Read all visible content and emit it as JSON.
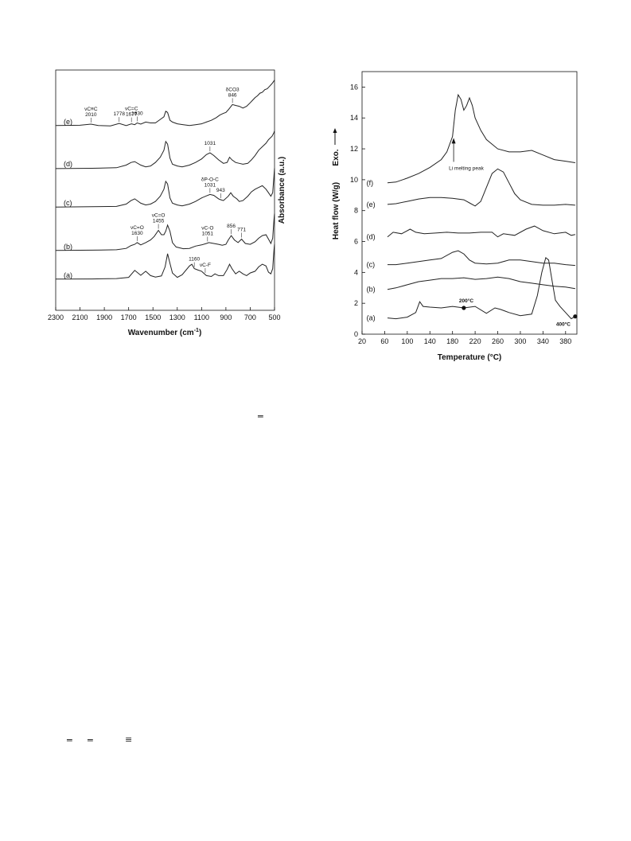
{
  "chart_data": [
    {
      "type": "line",
      "xlabel": "Wavenumber (cm-1)",
      "ylabel": "Absorbance (a.u.)",
      "x_ticks": [
        "2300",
        "2100",
        "1900",
        "1700",
        "1500",
        "1300",
        "1100",
        "900",
        "700",
        "500"
      ],
      "xlim": [
        2300,
        500
      ],
      "x_reversed": true,
      "series": [
        {
          "name": "(a)",
          "offset": 0,
          "x": [
            2300,
            2000,
            1800,
            1700,
            1650,
            1600,
            1560,
            1520,
            1480,
            1430,
            1400,
            1380,
            1360,
            1340,
            1300,
            1260,
            1200,
            1180,
            1160,
            1130,
            1100,
            1060,
            1020,
            990,
            960,
            920,
            890,
            870,
            850,
            820,
            790,
            760,
            730,
            700,
            660,
            630,
            600,
            570,
            550,
            530,
            515,
            505,
            500
          ],
          "y": [
            0.1,
            0.11,
            0.13,
            0.2,
            0.6,
            0.32,
            0.55,
            0.3,
            0.22,
            0.28,
            0.8,
            1.55,
            1.0,
            0.45,
            0.2,
            0.35,
            0.85,
            0.95,
            0.7,
            0.62,
            0.55,
            0.3,
            0.25,
            0.4,
            0.3,
            0.3,
            0.65,
            0.95,
            0.7,
            0.4,
            0.55,
            0.4,
            0.3,
            0.45,
            0.55,
            0.8,
            0.95,
            0.85,
            0.5,
            0.4,
            0.7,
            1.7,
            2.1
          ]
        },
        {
          "name": "(b)",
          "offset": 1.2,
          "x": [
            2300,
            2000,
            1800,
            1720,
            1680,
            1650,
            1630,
            1600,
            1560,
            1520,
            1490,
            1455,
            1430,
            1410,
            1395,
            1380,
            1360,
            1340,
            1310,
            1280,
            1250,
            1200,
            1150,
            1100,
            1060,
            1040,
            1000,
            960,
            930,
            900,
            880,
            856,
            830,
            800,
            771,
            740,
            700,
            660,
            630,
            600,
            570,
            550,
            530,
            515,
            505,
            500
          ],
          "y": [
            0.1,
            0.12,
            0.14,
            0.22,
            0.38,
            0.45,
            0.55,
            0.42,
            0.55,
            0.7,
            0.9,
            1.25,
            1.0,
            1.0,
            1.2,
            1.55,
            1.2,
            0.55,
            0.3,
            0.25,
            0.2,
            0.22,
            0.35,
            0.42,
            0.5,
            0.55,
            0.5,
            0.45,
            0.4,
            0.45,
            0.7,
            0.95,
            0.7,
            0.55,
            0.75,
            0.5,
            0.45,
            0.6,
            0.8,
            0.95,
            1.0,
            0.75,
            0.5,
            0.8,
            1.8,
            2.2
          ]
        },
        {
          "name": "(c)",
          "offset": 2.3,
          "x": [
            2300,
            2000,
            1800,
            1720,
            1680,
            1650,
            1600,
            1560,
            1520,
            1480,
            1440,
            1410,
            1395,
            1380,
            1360,
            1340,
            1300,
            1260,
            1200,
            1150,
            1100,
            1060,
            1031,
            1000,
            960,
            943,
            920,
            880,
            860,
            840,
            810,
            790,
            760,
            720,
            690,
            660,
            630,
            600,
            570,
            550,
            530,
            515,
            505,
            500
          ],
          "y": [
            0.08,
            0.1,
            0.12,
            0.25,
            0.45,
            0.55,
            0.3,
            0.2,
            0.25,
            0.4,
            0.7,
            1.1,
            1.55,
            1.4,
            0.6,
            0.3,
            0.2,
            0.15,
            0.25,
            0.4,
            0.6,
            0.72,
            0.8,
            0.75,
            0.55,
            0.5,
            0.45,
            0.7,
            0.9,
            0.7,
            0.55,
            0.4,
            0.45,
            0.7,
            0.95,
            1.1,
            1.2,
            1.3,
            1.1,
            0.9,
            0.7,
            0.9,
            1.8,
            2.3
          ]
        },
        {
          "name": "(d)",
          "offset": 3.4,
          "x": [
            2300,
            2000,
            1800,
            1720,
            1680,
            1650,
            1600,
            1560,
            1520,
            1480,
            1440,
            1410,
            1395,
            1380,
            1360,
            1340,
            1300,
            1260,
            1200,
            1150,
            1100,
            1060,
            1031,
            1000,
            960,
            920,
            890,
            870,
            850,
            820,
            790,
            760,
            720,
            690,
            660,
            630,
            600,
            570,
            550,
            520,
            505,
            500
          ],
          "y": [
            0.05,
            0.07,
            0.1,
            0.25,
            0.4,
            0.45,
            0.25,
            0.15,
            0.2,
            0.4,
            0.7,
            1.1,
            1.6,
            1.45,
            0.65,
            0.3,
            0.2,
            0.15,
            0.25,
            0.4,
            0.6,
            0.85,
            0.95,
            0.8,
            0.55,
            0.35,
            0.4,
            0.7,
            0.55,
            0.4,
            0.35,
            0.3,
            0.35,
            0.55,
            0.8,
            1.1,
            1.3,
            1.5,
            1.7,
            1.9,
            2.1,
            2.2
          ]
        },
        {
          "name": "(e)",
          "offset": 4.6,
          "x": [
            2300,
            2100,
            2010,
            1950,
            1850,
            1778,
            1720,
            1677,
            1650,
            1630,
            1600,
            1560,
            1520,
            1480,
            1440,
            1410,
            1395,
            1380,
            1360,
            1340,
            1300,
            1250,
            1200,
            1150,
            1100,
            1060,
            1020,
            980,
            950,
            920,
            900,
            880,
            846,
            820,
            790,
            760,
            730,
            700,
            680,
            660,
            640,
            620,
            600,
            580,
            560,
            540,
            520,
            510,
            500
          ],
          "y": [
            0.1,
            0.12,
            0.18,
            0.1,
            0.08,
            0.22,
            0.1,
            0.2,
            0.15,
            0.25,
            0.18,
            0.3,
            0.25,
            0.25,
            0.45,
            0.6,
            0.92,
            0.85,
            0.4,
            0.3,
            0.2,
            0.15,
            0.1,
            0.15,
            0.2,
            0.3,
            0.4,
            0.55,
            0.7,
            0.8,
            0.85,
            1.0,
            1.3,
            1.25,
            1.2,
            1.1,
            1.2,
            1.4,
            1.55,
            1.7,
            1.8,
            1.95,
            2.0,
            2.15,
            2.2,
            2.35,
            2.5,
            2.6,
            2.7
          ]
        }
      ],
      "annotations": [
        {
          "trace": "(e)",
          "x": 2010,
          "text": "νC≡C",
          "text2": "2010"
        },
        {
          "trace": "(e)",
          "x": 1778,
          "text": "1778"
        },
        {
          "trace": "(e)",
          "x": 1677,
          "text": "νC=C",
          "text2": "1677"
        },
        {
          "trace": "(e)",
          "x": 1630,
          "text": "1630"
        },
        {
          "trace": "(e)",
          "x": 846,
          "text": "δCO3",
          "text2": "846"
        },
        {
          "trace": "(d)",
          "x": 1031,
          "text": "1031"
        },
        {
          "trace": "(c)",
          "x": 1031,
          "text": "δP-O-C",
          "text2": "1031"
        },
        {
          "trace": "(c)",
          "x": 943,
          "text": "943"
        },
        {
          "trace": "(b)",
          "x": 1630,
          "text": "νC=O",
          "text2": "1630"
        },
        {
          "trace": "(b)",
          "x": 1455,
          "text": "νC=O",
          "text2": "1455"
        },
        {
          "trace": "(b)",
          "x": 1051,
          "text": "νC-O",
          "text2": "1051"
        },
        {
          "trace": "(b)",
          "x": 856,
          "text": "856"
        },
        {
          "trace": "(b)",
          "x": 771,
          "text": "771"
        },
        {
          "trace": "(a)",
          "x": 1160,
          "text": "1160"
        },
        {
          "trace": "(a)",
          "x": 1070,
          "text": "νC-F"
        }
      ]
    },
    {
      "type": "line",
      "xlabel": "Temperature (°C)",
      "ylabel": "Heat flow (W/g)",
      "ylabel_prefix": "Exo.",
      "xlim": [
        20,
        400
      ],
      "ylim": [
        0,
        17
      ],
      "x_ticks": [
        "20",
        "60",
        "100",
        "140",
        "180",
        "220",
        "260",
        "300",
        "340",
        "380"
      ],
      "y_ticks": [
        "0",
        "2",
        "4",
        "6",
        "8",
        "10",
        "12",
        "14",
        "16"
      ],
      "series": [
        {
          "name": "(a)",
          "x": [
            65,
            80,
            100,
            115,
            122,
            128,
            140,
            160,
            180,
            200,
            220,
            240,
            255,
            265,
            280,
            300,
            320,
            330,
            338,
            345,
            350,
            356,
            362,
            370,
            380,
            390,
            397
          ],
          "y": [
            1.05,
            1.0,
            1.1,
            1.4,
            2.1,
            1.8,
            1.75,
            1.7,
            1.8,
            1.7,
            1.8,
            1.35,
            1.7,
            1.6,
            1.4,
            1.2,
            1.3,
            2.5,
            4.0,
            4.95,
            4.8,
            3.5,
            2.2,
            1.8,
            1.4,
            1.0,
            1.15
          ]
        },
        {
          "name": "(b)",
          "x": [
            65,
            80,
            100,
            120,
            140,
            160,
            180,
            200,
            220,
            240,
            260,
            280,
            300,
            320,
            340,
            360,
            380,
            397
          ],
          "y": [
            2.9,
            3.0,
            3.2,
            3.4,
            3.5,
            3.6,
            3.6,
            3.65,
            3.55,
            3.6,
            3.7,
            3.6,
            3.4,
            3.3,
            3.2,
            3.1,
            3.05,
            2.95
          ]
        },
        {
          "name": "(c)",
          "x": [
            65,
            80,
            100,
            120,
            140,
            160,
            180,
            190,
            200,
            210,
            220,
            240,
            260,
            280,
            300,
            320,
            340,
            360,
            380,
            397
          ],
          "y": [
            4.5,
            4.5,
            4.6,
            4.7,
            4.8,
            4.9,
            5.3,
            5.4,
            5.2,
            4.8,
            4.6,
            4.55,
            4.6,
            4.8,
            4.8,
            4.7,
            4.6,
            4.6,
            4.5,
            4.45
          ]
        },
        {
          "name": "(d)",
          "x": [
            65,
            75,
            90,
            105,
            115,
            130,
            150,
            170,
            190,
            210,
            230,
            250,
            260,
            270,
            290,
            310,
            325,
            340,
            360,
            380,
            390,
            397
          ],
          "y": [
            6.3,
            6.6,
            6.5,
            6.8,
            6.6,
            6.5,
            6.55,
            6.6,
            6.55,
            6.55,
            6.6,
            6.6,
            6.3,
            6.5,
            6.4,
            6.8,
            7.0,
            6.7,
            6.5,
            6.6,
            6.4,
            6.45
          ]
        },
        {
          "name": "(e)",
          "x": [
            65,
            80,
            100,
            120,
            140,
            160,
            180,
            200,
            210,
            220,
            230,
            240,
            250,
            260,
            270,
            280,
            290,
            300,
            320,
            340,
            360,
            380,
            397
          ],
          "y": [
            8.4,
            8.45,
            8.6,
            8.75,
            8.85,
            8.85,
            8.8,
            8.7,
            8.5,
            8.3,
            8.6,
            9.5,
            10.4,
            10.7,
            10.5,
            9.8,
            9.1,
            8.7,
            8.4,
            8.35,
            8.35,
            8.4,
            8.35
          ]
        },
        {
          "name": "(f)",
          "x": [
            65,
            80,
            100,
            120,
            140,
            160,
            170,
            180,
            185,
            190,
            195,
            200,
            205,
            210,
            215,
            220,
            230,
            240,
            260,
            280,
            300,
            320,
            340,
            360,
            380,
            397
          ],
          "y": [
            9.8,
            9.85,
            10.1,
            10.4,
            10.8,
            11.3,
            11.8,
            12.8,
            14.5,
            15.5,
            15.2,
            14.5,
            14.8,
            15.3,
            14.8,
            14.0,
            13.2,
            12.6,
            12.0,
            11.8,
            11.8,
            11.9,
            11.6,
            11.3,
            11.2,
            11.1
          ]
        }
      ],
      "annotations": [
        {
          "text": "Li melting peak",
          "x": 182,
          "y": 12.6
        },
        {
          "text": "200°C",
          "x": 200,
          "y": 1.7
        },
        {
          "text": "400°C",
          "x": 397,
          "y": 1.15
        }
      ]
    }
  ]
}
